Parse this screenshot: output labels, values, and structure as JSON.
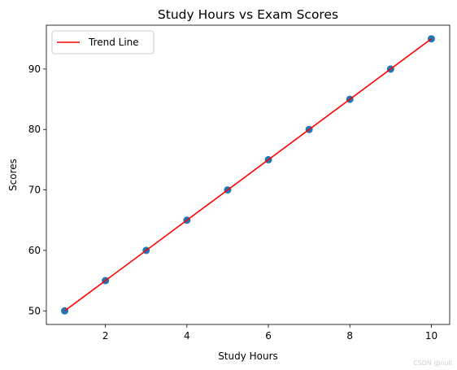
{
  "chart_data": {
    "type": "scatter",
    "title": "Study Hours vs Exam Scores",
    "xlabel": "Study Hours",
    "ylabel": "Scores",
    "xlim": [
      0.55,
      10.45
    ],
    "ylim": [
      47.75,
      97.25
    ],
    "xticks": [
      2,
      4,
      6,
      8,
      10
    ],
    "yticks": [
      50,
      60,
      70,
      80,
      90
    ],
    "grid": false,
    "legend_position": "top-left",
    "points": {
      "x": [
        1,
        2,
        3,
        4,
        5,
        6,
        7,
        8,
        9,
        10
      ],
      "y": [
        50,
        55,
        60,
        65,
        70,
        75,
        80,
        85,
        90,
        95
      ],
      "color": "#1f77b4"
    },
    "trend_line": {
      "name": "Trend Line",
      "x": [
        1,
        10
      ],
      "y": [
        50,
        95
      ],
      "color": "#ff0000"
    }
  },
  "watermark": "CSDN @null"
}
